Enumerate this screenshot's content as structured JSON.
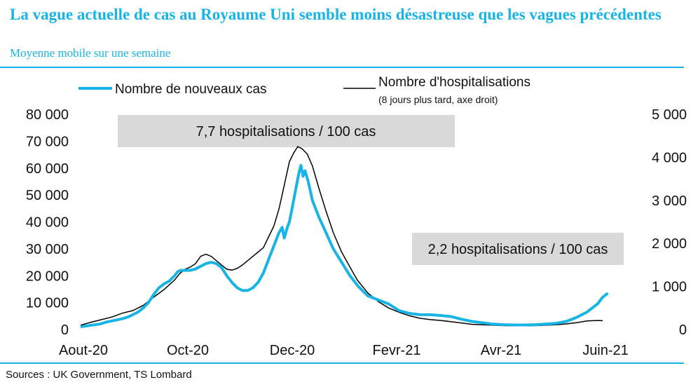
{
  "header": {
    "title": "La vague actuelle de cas au Royaume Uni semble moins désastreuse que les vagues précédentes",
    "subtitle": "Moyenne mobile sur une semaine"
  },
  "footer": {
    "source": "Sources : UK Government, TS Lombard"
  },
  "colors": {
    "accent": "#18b4e6",
    "cases": "#18b4e6",
    "hosp": "#000000",
    "annotation_bg": "#d9d9d9"
  },
  "chart_data": {
    "type": "line",
    "title": "La vague actuelle de cas au Royaume Uni semble moins désastreuse que les vagues précédentes",
    "subtitle": "Moyenne mobile sur une semaine",
    "x_ticks": [
      "Aout-20",
      "Oct-20",
      "Dec-20",
      "Fevr-21",
      "Avr-21",
      "Juin-21"
    ],
    "y_left": {
      "ylim": [
        0,
        80000
      ],
      "ticks": [
        "0",
        "10 000",
        "20 000",
        "30 000",
        "40 000",
        "50 000",
        "60 000",
        "70 000",
        "80 000"
      ]
    },
    "y_right": {
      "ylim": [
        0,
        5000
      ],
      "ticks": [
        "0",
        "1 000",
        "2 000",
        "3 000",
        "4 000",
        "5 000"
      ]
    },
    "legend": {
      "placement": "top",
      "cases_label": "Nombre de nouveaux cas",
      "hosp_label": "Nombre d'hospitalisations",
      "hosp_note": "(8 jours plus tard, axe droit)"
    },
    "annotations": [
      "7,7 hospitalisations / 100 cas",
      "2,2 hospitalisations / 100 cas"
    ],
    "series": [
      {
        "name": "Nombre de nouveaux cas",
        "axis": "left",
        "points": [
          [
            0,
            1000
          ],
          [
            0.05,
            1300
          ],
          [
            0.1,
            1600
          ],
          [
            0.18,
            2000
          ],
          [
            0.25,
            2800
          ],
          [
            0.3,
            3200
          ],
          [
            0.35,
            3600
          ],
          [
            0.4,
            4000
          ],
          [
            0.45,
            4600
          ],
          [
            0.5,
            5500
          ],
          [
            0.55,
            6500
          ],
          [
            0.6,
            8000
          ],
          [
            0.65,
            10000
          ],
          [
            0.7,
            13000
          ],
          [
            0.75,
            15500
          ],
          [
            0.8,
            17000
          ],
          [
            0.85,
            18000
          ],
          [
            0.9,
            20000
          ],
          [
            0.93,
            21500
          ],
          [
            0.96,
            22000
          ],
          [
            1,
            22000
          ],
          [
            1.05,
            22000
          ],
          [
            1.1,
            22500
          ],
          [
            1.15,
            23500
          ],
          [
            1.2,
            24500
          ],
          [
            1.25,
            25000
          ],
          [
            1.3,
            24500
          ],
          [
            1.35,
            23000
          ],
          [
            1.4,
            20000
          ],
          [
            1.45,
            17500
          ],
          [
            1.5,
            15500
          ],
          [
            1.55,
            14500
          ],
          [
            1.6,
            14500
          ],
          [
            1.65,
            15500
          ],
          [
            1.7,
            17500
          ],
          [
            1.75,
            21000
          ],
          [
            1.8,
            26000
          ],
          [
            1.85,
            31000
          ],
          [
            1.9,
            36000
          ],
          [
            1.93,
            38000
          ],
          [
            1.95,
            34000
          ],
          [
            1.98,
            38000
          ],
          [
            2,
            40000
          ],
          [
            2.03,
            46000
          ],
          [
            2.06,
            52000
          ],
          [
            2.09,
            58000
          ],
          [
            2.11,
            61000
          ],
          [
            2.13,
            57000
          ],
          [
            2.15,
            59000
          ],
          [
            2.18,
            55000
          ],
          [
            2.22,
            48000
          ],
          [
            2.28,
            42000
          ],
          [
            2.35,
            36000
          ],
          [
            2.42,
            30000
          ],
          [
            2.5,
            25000
          ],
          [
            2.58,
            20000
          ],
          [
            2.66,
            16000
          ],
          [
            2.75,
            12500
          ],
          [
            2.85,
            11000
          ],
          [
            2.95,
            9500
          ],
          [
            3.05,
            7000
          ],
          [
            3.15,
            6000
          ],
          [
            3.25,
            5500
          ],
          [
            3.35,
            5500
          ],
          [
            3.45,
            5200
          ],
          [
            3.55,
            4800
          ],
          [
            3.65,
            3800
          ],
          [
            3.75,
            3000
          ],
          [
            3.85,
            2500
          ],
          [
            3.95,
            2000
          ],
          [
            4.05,
            1800
          ],
          [
            4.15,
            1700
          ],
          [
            4.25,
            1700
          ],
          [
            4.35,
            1800
          ],
          [
            4.45,
            2000
          ],
          [
            4.55,
            2300
          ],
          [
            4.65,
            3000
          ],
          [
            4.75,
            4500
          ],
          [
            4.85,
            6500
          ],
          [
            4.95,
            9500
          ],
          [
            5.0,
            12000
          ],
          [
            5.05,
            13500
          ]
        ]
      },
      {
        "name": "Nombre d'hospitalisations",
        "axis": "right",
        "points": [
          [
            0,
            100
          ],
          [
            0.1,
            170
          ],
          [
            0.2,
            230
          ],
          [
            0.3,
            290
          ],
          [
            0.4,
            380
          ],
          [
            0.5,
            440
          ],
          [
            0.6,
            560
          ],
          [
            0.7,
            750
          ],
          [
            0.8,
            930
          ],
          [
            0.9,
            1150
          ],
          [
            0.95,
            1300
          ],
          [
            1,
            1400
          ],
          [
            1.05,
            1450
          ],
          [
            1.1,
            1530
          ],
          [
            1.15,
            1700
          ],
          [
            1.2,
            1750
          ],
          [
            1.25,
            1700
          ],
          [
            1.3,
            1600
          ],
          [
            1.35,
            1500
          ],
          [
            1.4,
            1400
          ],
          [
            1.45,
            1380
          ],
          [
            1.5,
            1420
          ],
          [
            1.55,
            1500
          ],
          [
            1.6,
            1600
          ],
          [
            1.65,
            1700
          ],
          [
            1.7,
            1800
          ],
          [
            1.75,
            1900
          ],
          [
            1.8,
            2150
          ],
          [
            1.85,
            2400
          ],
          [
            1.9,
            2800
          ],
          [
            1.95,
            3350
          ],
          [
            2,
            3900
          ],
          [
            2.04,
            4100
          ],
          [
            2.08,
            4250
          ],
          [
            2.12,
            4200
          ],
          [
            2.17,
            4080
          ],
          [
            2.22,
            3800
          ],
          [
            2.28,
            3300
          ],
          [
            2.35,
            2750
          ],
          [
            2.42,
            2250
          ],
          [
            2.5,
            1800
          ],
          [
            2.58,
            1450
          ],
          [
            2.65,
            1150
          ],
          [
            2.75,
            850
          ],
          [
            2.85,
            650
          ],
          [
            2.95,
            500
          ],
          [
            3.05,
            400
          ],
          [
            3.15,
            320
          ],
          [
            3.25,
            260
          ],
          [
            3.35,
            230
          ],
          [
            3.45,
            210
          ],
          [
            3.55,
            180
          ],
          [
            3.65,
            150
          ],
          [
            3.75,
            120
          ],
          [
            3.85,
            110
          ],
          [
            3.95,
            100
          ],
          [
            4.05,
            90
          ],
          [
            4.15,
            85
          ],
          [
            4.25,
            85
          ],
          [
            4.35,
            90
          ],
          [
            4.45,
            100
          ],
          [
            4.55,
            110
          ],
          [
            4.65,
            130
          ],
          [
            4.75,
            160
          ],
          [
            4.85,
            200
          ],
          [
            4.95,
            210
          ],
          [
            5.0,
            205
          ]
        ]
      }
    ]
  }
}
